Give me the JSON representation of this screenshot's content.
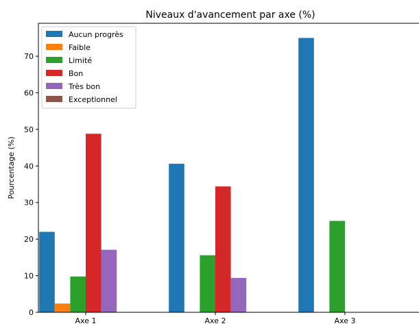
{
  "chart_data": {
    "type": "bar",
    "title": "Niveaux d'avancement par axe (%)",
    "xlabel": "",
    "ylabel": "Pourcentage (%)",
    "ylim": [
      0,
      79
    ],
    "yticks": [
      0,
      10,
      20,
      30,
      40,
      50,
      60,
      70
    ],
    "categories": [
      "Axe 1",
      "Axe 2",
      "Axe 3"
    ],
    "series": [
      {
        "name": "Aucun progrès",
        "color": "#1f77b4",
        "values": [
          22.0,
          40.6,
          75.0
        ]
      },
      {
        "name": "Faible",
        "color": "#ff7f0e",
        "values": [
          2.4,
          0,
          0
        ]
      },
      {
        "name": "Limité",
        "color": "#2ca02c",
        "values": [
          9.8,
          15.6,
          25.0
        ]
      },
      {
        "name": "Bon",
        "color": "#d62728",
        "values": [
          48.8,
          34.4,
          0
        ]
      },
      {
        "name": "Très bon",
        "color": "#9467bd",
        "values": [
          17.1,
          9.4,
          0
        ]
      },
      {
        "name": "Exceptionnel",
        "color": "#8c564b",
        "values": [
          0,
          0,
          0
        ]
      }
    ],
    "legend_position": "top-left",
    "grid": false
  }
}
